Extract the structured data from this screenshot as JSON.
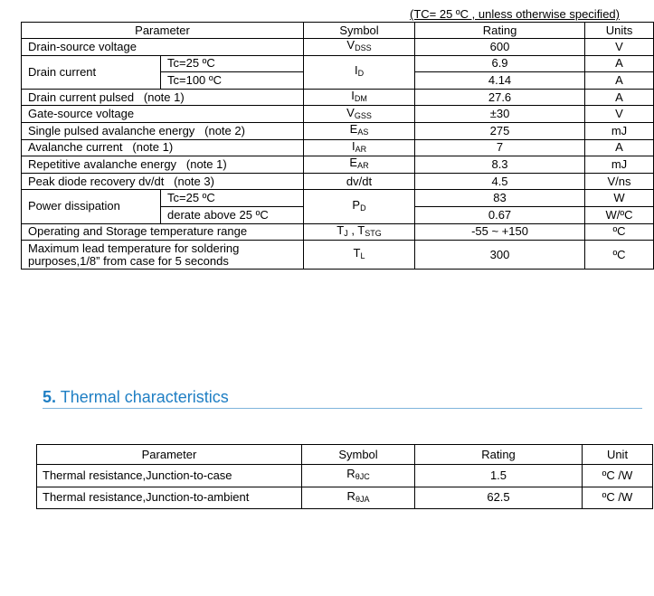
{
  "condition_note": "(TC= 25 ºC , unless otherwise specified)",
  "abs_table": {
    "header": [
      "Parameter",
      "Symbol",
      "Rating",
      "Units"
    ],
    "rows": [
      {
        "parameter": "Drain-source voltage",
        "symbol": [
          "V",
          "DSS"
        ],
        "values": [
          {
            "rating": "600",
            "unit": "V"
          }
        ]
      },
      {
        "parameter": "Drain current",
        "symbol": [
          "I",
          "D"
        ],
        "values": [
          {
            "condition": "Tc=25 ºC",
            "rating": "6.9",
            "unit": "A"
          },
          {
            "condition": "Tc=100 ºC",
            "rating": "4.14",
            "unit": "A"
          }
        ]
      },
      {
        "parameter": "Drain current pulsed   (note 1)",
        "symbol": [
          "I",
          "DM"
        ],
        "values": [
          {
            "rating": "27.6",
            "unit": "A"
          }
        ]
      },
      {
        "parameter": "Gate-source voltage",
        "symbol": [
          "V",
          "GSS"
        ],
        "values": [
          {
            "rating": "±30",
            "unit": "V"
          }
        ]
      },
      {
        "parameter": "Single pulsed avalanche energy   (note 2)",
        "symbol": [
          "E",
          "AS"
        ],
        "values": [
          {
            "rating": "275",
            "unit": "mJ"
          }
        ]
      },
      {
        "parameter": "Avalanche current   (note 1)",
        "symbol": [
          "I",
          "AR"
        ],
        "values": [
          {
            "rating": "7",
            "unit": "A"
          }
        ]
      },
      {
        "parameter": "Repetitive avalanche energy   (note 1)",
        "symbol": [
          "E",
          "AR"
        ],
        "values": [
          {
            "rating": "8.3",
            "unit": "mJ"
          }
        ]
      },
      {
        "parameter": "Peak diode recovery dv/dt   (note 3)",
        "symbol": [
          "dv/dt"
        ],
        "values": [
          {
            "rating": "4.5",
            "unit": "V/ns"
          }
        ]
      },
      {
        "parameter": "Power dissipation",
        "symbol": [
          "P",
          "D"
        ],
        "values": [
          {
            "condition": "Tc=25 ºC",
            "rating": "83",
            "unit": "W"
          },
          {
            "condition": "derate above 25 ºC",
            "rating": "0.67",
            "unit": "W/ºC"
          }
        ]
      },
      {
        "parameter": "Operating and Storage temperature range",
        "symbol": [
          "T",
          "J",
          " , T",
          "STG"
        ],
        "values": [
          {
            "rating": "-55 ~ +150",
            "unit": "ºC"
          }
        ]
      },
      {
        "parameter": [
          "Maximum lead temperature for soldering",
          "purposes,1/8” from case for 5 seconds"
        ],
        "symbol": [
          "T",
          "L"
        ],
        "values": [
          {
            "rating": "300",
            "unit": "ºC"
          }
        ]
      }
    ]
  },
  "section": {
    "number": "5.",
    "title": "Thermal characteristics"
  },
  "thermal_table": {
    "header": [
      "Parameter",
      "Symbol",
      "Rating",
      "Unit"
    ],
    "rows": [
      {
        "parameter": "Thermal resistance,Junction-to-case",
        "symbol": [
          "R",
          "θJC"
        ],
        "rating": "1.5",
        "unit": "ºC /W"
      },
      {
        "parameter": "Thermal resistance,Junction-to-ambient",
        "symbol": [
          "R",
          "θJA"
        ],
        "rating": "62.5",
        "unit": "ºC /W"
      }
    ]
  }
}
